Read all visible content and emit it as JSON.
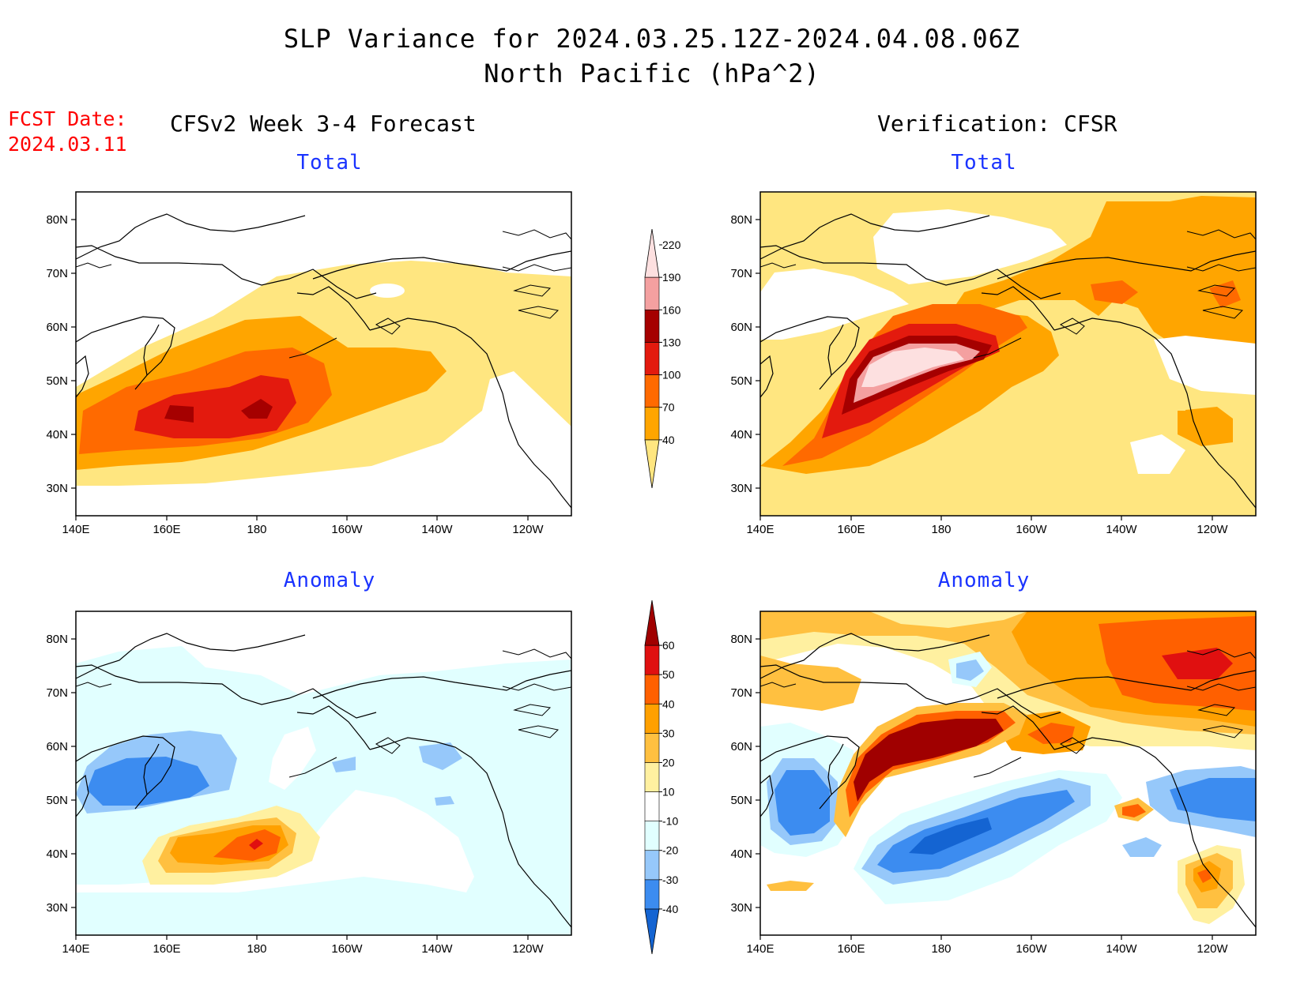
{
  "title": "SLP Variance for 2024.03.25.12Z-2024.04.08.06Z",
  "subtitle": "North Pacific (hPa^2)",
  "forecast_date": {
    "label": "FCST Date:",
    "value": "2024.03.11"
  },
  "left_column_title": "CFSv2 Week 3-4 Forecast",
  "right_column_title": "Verification: CFSR",
  "panels": {
    "forecast_total": {
      "label": "Total"
    },
    "forecast_anomaly": {
      "label": "Anomaly"
    },
    "verification_total": {
      "label": "Total"
    },
    "verification_anomaly": {
      "label": "Anomaly"
    }
  },
  "axes": {
    "lat_labels": [
      "80N",
      "70N",
      "60N",
      "50N",
      "40N",
      "30N"
    ],
    "lon_labels": [
      "140E",
      "160E",
      "180",
      "160W",
      "140W",
      "120W"
    ]
  },
  "colorbars": {
    "total": {
      "levels": [
        "40",
        "70",
        "100",
        "130",
        "160",
        "190",
        "220"
      ],
      "colors": [
        "#ffe680",
        "#ffa500",
        "#ff6a00",
        "#e31a0e",
        "#a50000",
        "#f4a0a0",
        "#fde0e0"
      ]
    },
    "anomaly": {
      "levels": [
        "-40",
        "-30",
        "-20",
        "-10",
        "10",
        "20",
        "30",
        "40",
        "50",
        "60"
      ],
      "colors": [
        "#1464d2",
        "#3c8cf0",
        "#96c8fa",
        "#e1ffff",
        "#ffffff",
        "#fff0a0",
        "#ffc040",
        "#ffa000",
        "#ff6000",
        "#e01010",
        "#a00000"
      ]
    }
  }
}
